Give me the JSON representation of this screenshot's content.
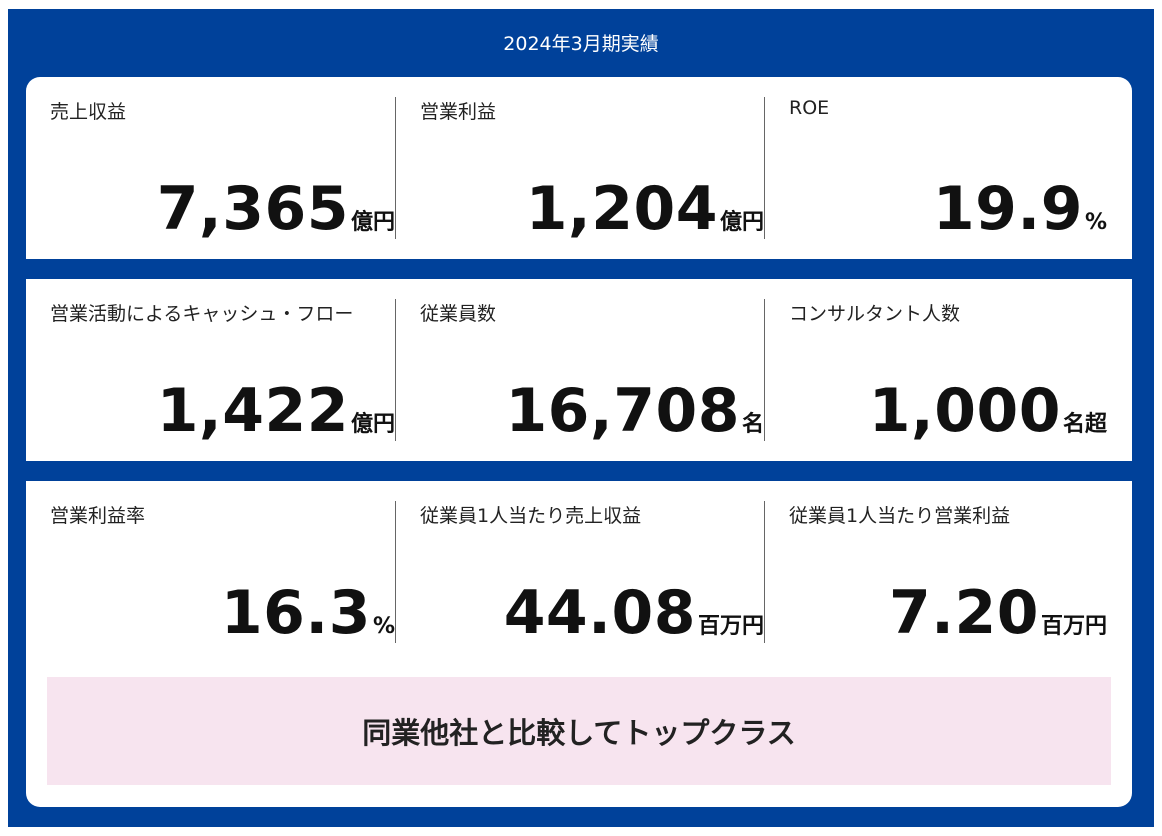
{
  "header": {
    "title": "2024年3月期実績"
  },
  "row1": [
    {
      "label": "売上収益",
      "value": "7,365",
      "unit": "億円"
    },
    {
      "label": "営業利益",
      "value": "1,204",
      "unit": "億円"
    },
    {
      "label": "ROE",
      "value": "19.9",
      "unit": "%"
    }
  ],
  "row2": [
    {
      "label": "営業活動によるキャッシュ・フロー",
      "value": "1,422",
      "unit": "億円"
    },
    {
      "label": "従業員数",
      "value": "16,708",
      "unit": "名"
    },
    {
      "label": "コンサルタント人数",
      "value": "1,000",
      "unit": "名超"
    }
  ],
  "row3": [
    {
      "label": "営業利益率",
      "value": "16.3",
      "unit": "%"
    },
    {
      "label": "従業員1人当たり売上収益",
      "value": "44.08",
      "unit": "百万円"
    },
    {
      "label": "従業員1人当たり営業利益",
      "value": "7.20",
      "unit": "百万円"
    }
  ],
  "banner": {
    "text": "同業他社と比較してトップクラス"
  },
  "colors": {
    "frame": "#00419a",
    "card": "#ffffff",
    "banner": "#f7e4ef"
  }
}
